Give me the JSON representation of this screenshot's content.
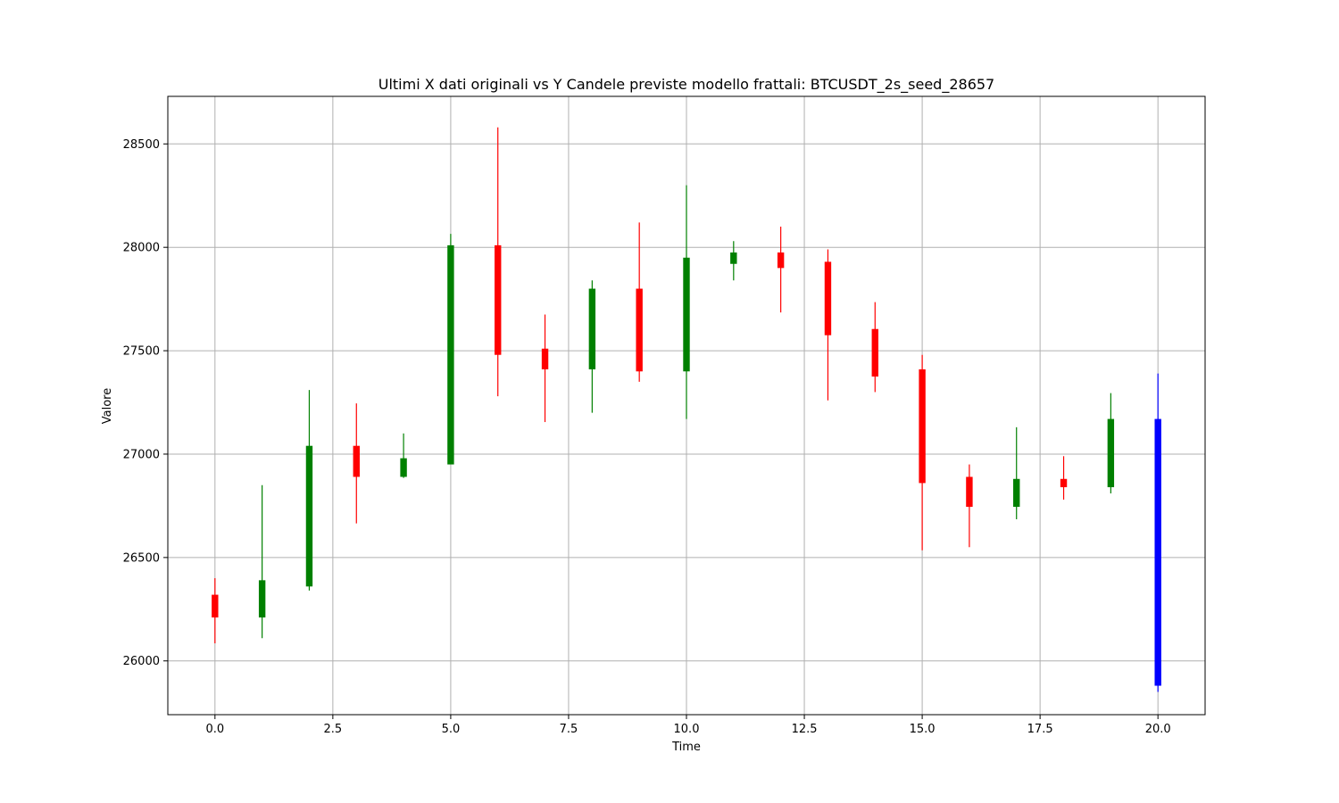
{
  "chart_data": {
    "type": "candlestick",
    "title": "Ultimi X dati originali vs Y Candele previste modello frattali: BTCUSDT_2s_seed_28657",
    "xlabel": "Time",
    "ylabel": "Valore",
    "xlim": [
      -1,
      21
    ],
    "ylim": [
      25740,
      28730
    ],
    "xticks": [
      0.0,
      2.5,
      5.0,
      7.5,
      10.0,
      12.5,
      15.0,
      17.5,
      20.0
    ],
    "xtick_labels": [
      "0.0",
      "2.5",
      "5.0",
      "7.5",
      "10.0",
      "12.5",
      "15.0",
      "17.5",
      "20.0"
    ],
    "yticks": [
      26000,
      26500,
      27000,
      27500,
      28000,
      28500
    ],
    "ytick_labels": [
      "26000",
      "26500",
      "27000",
      "27500",
      "28000",
      "28500"
    ],
    "grid": true,
    "colors": {
      "up": "#008000",
      "down": "#ff0000",
      "forecast": "#0000ff"
    },
    "candles": [
      {
        "x": 0,
        "open": 26320,
        "close": 26210,
        "high": 26400,
        "low": 26085,
        "color": "down"
      },
      {
        "x": 1,
        "open": 26210,
        "close": 26390,
        "high": 26850,
        "low": 26110,
        "color": "up"
      },
      {
        "x": 2,
        "open": 26360,
        "close": 27040,
        "high": 27310,
        "low": 26340,
        "color": "up"
      },
      {
        "x": 3,
        "open": 27040,
        "close": 26890,
        "high": 27245,
        "low": 26665,
        "color": "down"
      },
      {
        "x": 4,
        "open": 26890,
        "close": 26980,
        "high": 27100,
        "low": 26885,
        "color": "up"
      },
      {
        "x": 5,
        "open": 26950,
        "close": 28010,
        "high": 28065,
        "low": 26950,
        "color": "up"
      },
      {
        "x": 6,
        "open": 28010,
        "close": 27480,
        "high": 28580,
        "low": 27280,
        "color": "down"
      },
      {
        "x": 7,
        "open": 27510,
        "close": 27410,
        "high": 27675,
        "low": 27155,
        "color": "down"
      },
      {
        "x": 8,
        "open": 27410,
        "close": 27800,
        "high": 27840,
        "low": 27200,
        "color": "up"
      },
      {
        "x": 9,
        "open": 27800,
        "close": 27400,
        "high": 28120,
        "low": 27350,
        "color": "down"
      },
      {
        "x": 10,
        "open": 27400,
        "close": 27950,
        "high": 28300,
        "low": 27170,
        "color": "up"
      },
      {
        "x": 11,
        "open": 27920,
        "close": 27975,
        "high": 28030,
        "low": 27840,
        "color": "up"
      },
      {
        "x": 12,
        "open": 27975,
        "close": 27900,
        "high": 28100,
        "low": 27685,
        "color": "down"
      },
      {
        "x": 13,
        "open": 27930,
        "close": 27575,
        "high": 27990,
        "low": 27260,
        "color": "down"
      },
      {
        "x": 14,
        "open": 27605,
        "close": 27375,
        "high": 27735,
        "low": 27300,
        "color": "down"
      },
      {
        "x": 15,
        "open": 27410,
        "close": 26860,
        "high": 27480,
        "low": 26535,
        "color": "down"
      },
      {
        "x": 16,
        "open": 26890,
        "close": 26745,
        "high": 26950,
        "low": 26550,
        "color": "down"
      },
      {
        "x": 17,
        "open": 26745,
        "close": 26880,
        "high": 27130,
        "low": 26685,
        "color": "up"
      },
      {
        "x": 18,
        "open": 26880,
        "close": 26840,
        "high": 26990,
        "low": 26780,
        "color": "down"
      },
      {
        "x": 19,
        "open": 26840,
        "close": 27170,
        "high": 27295,
        "low": 26810,
        "color": "up"
      },
      {
        "x": 20,
        "open": 27170,
        "close": 25880,
        "high": 27390,
        "low": 25850,
        "color": "forecast"
      }
    ]
  }
}
